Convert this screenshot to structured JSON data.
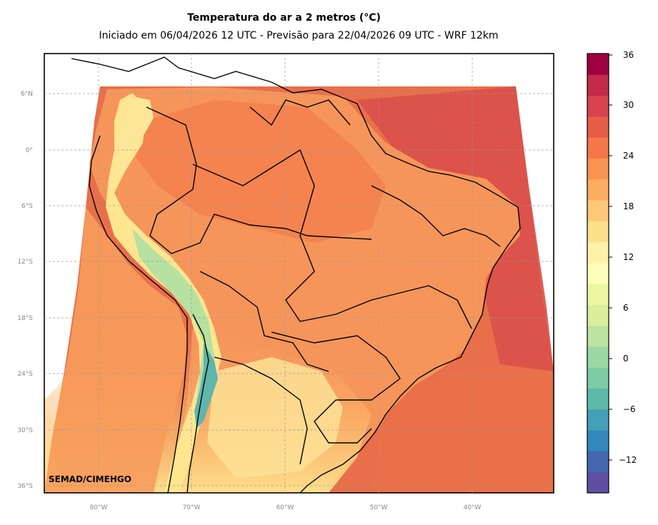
{
  "title": "Temperatura do ar a 2 metros (°C)",
  "subtitle": "Iniciado em 06/04/2026 12 UTC - Previsão para 22/04/2026 09 UTC - WRF 12km",
  "credit": "SEMAD/CIMEHGO",
  "lat_labels": [
    "6°N",
    "0°",
    "6°S",
    "12°S",
    "18°S",
    "24°S",
    "30°S",
    "36°S"
  ],
  "lon_labels": [
    "80°W",
    "70°W",
    "60°W",
    "50°W",
    "40°W"
  ],
  "colorbar": {
    "ticks": [
      "36",
      "30",
      "24",
      "18",
      "12",
      "6",
      "0",
      "−6",
      "−12"
    ],
    "min": -15,
    "max": 36,
    "colors": [
      "#5e4fa2",
      "#4566b0",
      "#3288bd",
      "#439fb5",
      "#5fb9a8",
      "#7dcba4",
      "#9cd8a4",
      "#bce4a0",
      "#d9ef9b",
      "#ecf7a1",
      "#fbfdb8",
      "#fff1a8",
      "#fee08b",
      "#fdc877",
      "#fdad60",
      "#f99353",
      "#f57747",
      "#e75d47",
      "#d8434e",
      "#c42a4a",
      "#9e0142"
    ]
  },
  "colors": {
    "ocean_warm": "#e56a48",
    "ocean_hot": "#d84a48",
    "land_base": "#f59557",
    "andes_cold": "#8dd0a4",
    "south_cool": "#fdd07e"
  }
}
